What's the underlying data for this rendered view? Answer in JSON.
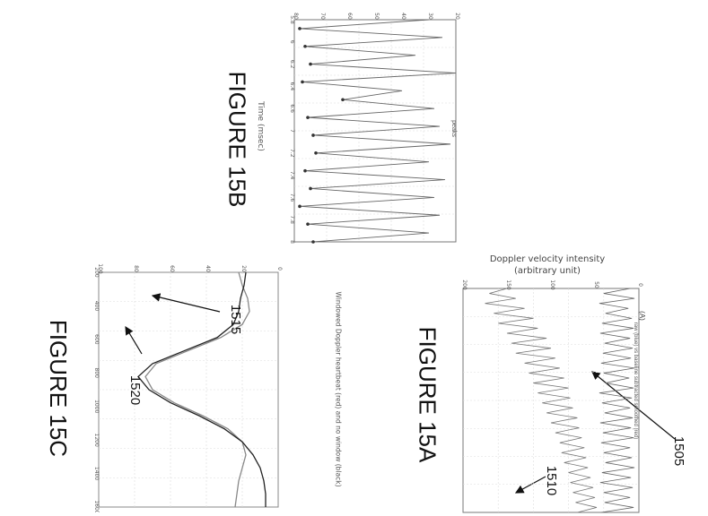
{
  "figures": {
    "fig15a": {
      "label": "FIGURE 15A",
      "ylabel_line1": "Doppler velocity intensity",
      "ylabel_line2": "(arbitrary unit)",
      "panel_tag": "(A)",
      "legend_text": "raw (blue) vs baseline subtracted smoothed (red)",
      "ref_upper": "1505",
      "ref_lower": "1510",
      "ytick_labels": [
        "0",
        "50",
        "100",
        "150",
        "200"
      ]
    },
    "fig15b": {
      "label": "FIGURE 15B",
      "xlabel": "Time (msec)",
      "legend_text": "peaks",
      "xtick_labels": [
        "5.8",
        "6",
        "6.2",
        "6.4",
        "6.6",
        "7",
        "7.2",
        "7.4",
        "7.6",
        "7.8",
        "8"
      ],
      "ytick_labels": [
        "20",
        "30",
        "40",
        "50",
        "60",
        "70",
        "80"
      ]
    },
    "fig15c": {
      "label": "FIGURE 15C",
      "title": "Windowed Doppler heartbeat (red) and no window (black)",
      "ref_upper": "1515",
      "ref_lower": "1520",
      "xtick_labels": [
        "200",
        "400",
        "600",
        "800",
        "1000",
        "1200",
        "1400",
        "1600"
      ],
      "ytick_labels": [
        "0",
        "20",
        "40",
        "60",
        "80",
        "100"
      ]
    }
  },
  "chart_data": [
    {
      "type": "line",
      "title": "",
      "xlabel": "",
      "ylabel": "Doppler velocity intensity (arbitrary unit)",
      "ylim": [
        0,
        200
      ],
      "series": [
        {
          "name": "raw (blue)",
          "values": [
            150,
            170,
            140,
            175,
            130,
            165,
            120,
            160,
            115,
            150,
            105,
            145,
            100,
            140,
            95,
            130,
            90,
            125,
            85,
            120,
            80,
            115,
            78,
            110,
            75,
            105,
            70,
            100,
            68,
            95,
            65,
            90,
            62,
            88,
            60,
            85,
            58,
            80,
            55,
            78,
            52,
            75,
            50,
            72,
            48,
            70
          ]
        },
        {
          "name": "baseline subtracted smoothed (red)",
          "values": [
            10,
            40,
            5,
            45,
            12,
            38,
            8,
            42,
            6,
            44,
            10,
            39,
            7,
            41,
            9,
            43,
            5,
            40,
            11,
            38,
            6,
            45,
            8,
            42,
            10,
            39,
            7,
            44,
            9,
            41,
            6,
            43,
            10,
            40,
            8,
            38,
            5,
            42,
            9,
            44,
            7,
            40,
            10,
            39,
            6,
            43
          ]
        }
      ],
      "grid": true
    },
    {
      "type": "line",
      "title": "",
      "xlabel": "Time (msec)",
      "ylabel": "",
      "xlim": [
        5.8,
        8
      ],
      "ylim": [
        20,
        80
      ],
      "series": [
        {
          "name": "peaks",
          "values": [
            30,
            78,
            25,
            76,
            35,
            74,
            20,
            77,
            40,
            62,
            28,
            75,
            26,
            73,
            22,
            72,
            30,
            76,
            24,
            74,
            28,
            78,
            26,
            75,
            30,
            73
          ]
        }
      ],
      "grid": true
    },
    {
      "type": "line",
      "title": "Windowed Doppler heartbeat (red) and no window (black)",
      "xlabel": "",
      "ylabel": "",
      "xlim": [
        0,
        1700
      ],
      "ylim": [
        0,
        100
      ],
      "series": [
        {
          "name": "red",
          "values": [
            22,
            20,
            17,
            16,
            20,
            32,
            50,
            68,
            74,
            70,
            58,
            42,
            28,
            20,
            18,
            20,
            22,
            23,
            24
          ]
        },
        {
          "name": "black",
          "values": [
            18,
            19,
            21,
            22,
            25,
            34,
            52,
            70,
            78,
            72,
            60,
            44,
            30,
            20,
            14,
            10,
            8,
            7,
            7
          ]
        }
      ],
      "grid": true
    }
  ]
}
